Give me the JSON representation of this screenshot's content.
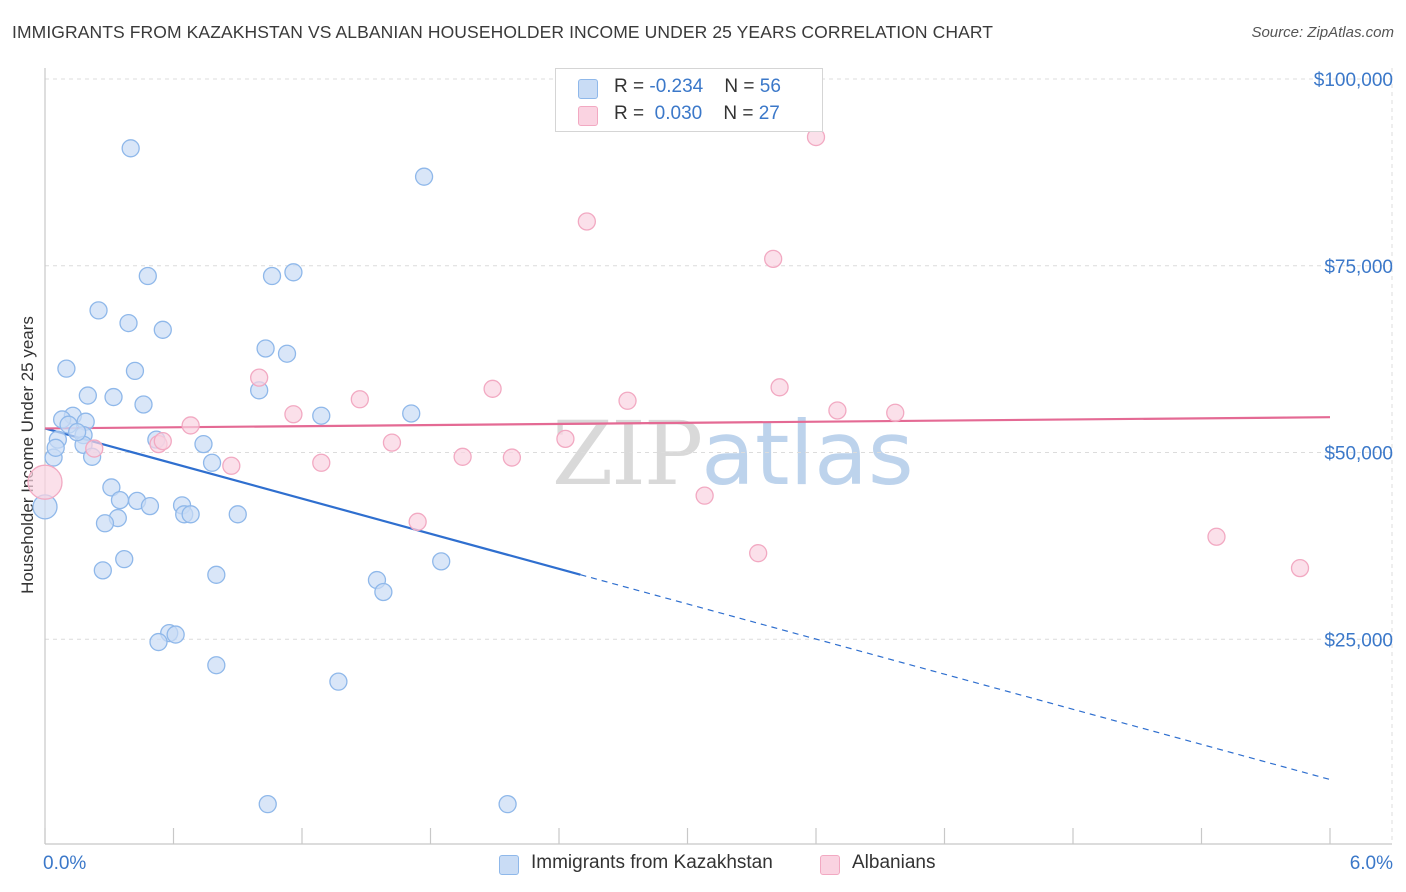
{
  "chart_data": {
    "type": "scatter",
    "title": "IMMIGRANTS FROM KAZAKHSTAN VS ALBANIAN HOUSEHOLDER INCOME UNDER 25 YEARS CORRELATION CHART",
    "source": "Source: ZipAtlas.com",
    "xlabel": "",
    "ylabel": "Householder Income Under 25 years",
    "xlim": [
      0.0,
      6.0
    ],
    "ylim": [
      0,
      105000
    ],
    "x_tick_labels": [
      "0.0%",
      "6.0%"
    ],
    "y_ticks": [
      {
        "value": 25000,
        "label": "$25,000"
      },
      {
        "value": 50000,
        "label": "$50,000"
      },
      {
        "value": 75000,
        "label": "$75,000"
      },
      {
        "value": 100000,
        "label": "$100,000"
      }
    ],
    "grid": true,
    "legend_position": "top-center",
    "series": [
      {
        "name": "Immigrants from Kazakhstan",
        "color": "#8fb8ea",
        "fill": "#c9dcf5",
        "line_color": "#2f6fcf",
        "R": "-0.234",
        "N": "56",
        "trend": {
          "x0": 0.0,
          "y0": 55500,
          "x_solid_end": 2.5,
          "x1": 6.0,
          "y1": 8500
        },
        "points": [
          [
            0.4,
            93000
          ],
          [
            1.77,
            89200
          ],
          [
            0.48,
            75900
          ],
          [
            1.06,
            75900
          ],
          [
            1.16,
            76400
          ],
          [
            0.25,
            71300
          ],
          [
            0.39,
            69600
          ],
          [
            0.55,
            68700
          ],
          [
            1.03,
            66200
          ],
          [
            1.13,
            65500
          ],
          [
            0.1,
            63500
          ],
          [
            0.42,
            63200
          ],
          [
            1.0,
            60600
          ],
          [
            0.2,
            59900
          ],
          [
            0.32,
            59700
          ],
          [
            0.46,
            58700
          ],
          [
            0.13,
            57200
          ],
          [
            0.08,
            56700
          ],
          [
            0.19,
            56400
          ],
          [
            0.11,
            56000
          ],
          [
            1.29,
            57200
          ],
          [
            1.71,
            57500
          ],
          [
            0.06,
            54000
          ],
          [
            0.18,
            54600
          ],
          [
            0.52,
            54000
          ],
          [
            0.74,
            53400
          ],
          [
            0.18,
            53300
          ],
          [
            0.22,
            51700
          ],
          [
            0.04,
            51600
          ],
          [
            0.78,
            50900
          ],
          [
            0.0,
            45000
          ],
          [
            0.31,
            47600
          ],
          [
            0.35,
            45900
          ],
          [
            0.43,
            45800
          ],
          [
            0.49,
            45100
          ],
          [
            0.64,
            45200
          ],
          [
            0.65,
            44000
          ],
          [
            0.68,
            44000
          ],
          [
            0.9,
            44000
          ],
          [
            0.34,
            43500
          ],
          [
            0.28,
            42800
          ],
          [
            0.37,
            38000
          ],
          [
            1.85,
            37700
          ],
          [
            0.27,
            36500
          ],
          [
            0.8,
            35900
          ],
          [
            1.55,
            35200
          ],
          [
            1.58,
            33600
          ],
          [
            0.58,
            28100
          ],
          [
            0.61,
            27900
          ],
          [
            0.53,
            26900
          ],
          [
            0.8,
            23800
          ],
          [
            1.37,
            21600
          ],
          [
            1.04,
            5200
          ],
          [
            2.16,
            5200
          ],
          [
            0.05,
            52900
          ],
          [
            0.15,
            55000
          ]
        ]
      },
      {
        "name": "Albanians",
        "color": "#f2a9c2",
        "fill": "#fad3e1",
        "line_color": "#e46a94",
        "R": "0.030",
        "N": "27",
        "trend": {
          "x0": 0.0,
          "y0": 55500,
          "x1": 6.0,
          "y1": 57000
        },
        "points": [
          [
            3.6,
            94500
          ],
          [
            2.53,
            83200
          ],
          [
            3.4,
            78200
          ],
          [
            1.0,
            62300
          ],
          [
            2.09,
            60800
          ],
          [
            3.43,
            61000
          ],
          [
            1.47,
            59400
          ],
          [
            2.72,
            59200
          ],
          [
            3.7,
            57900
          ],
          [
            3.97,
            57600
          ],
          [
            1.16,
            57400
          ],
          [
            0.68,
            55900
          ],
          [
            2.43,
            54100
          ],
          [
            0.53,
            53400
          ],
          [
            1.62,
            53600
          ],
          [
            0.23,
            52800
          ],
          [
            1.95,
            51700
          ],
          [
            2.18,
            51600
          ],
          [
            1.29,
            50900
          ],
          [
            0.87,
            50500
          ],
          [
            3.08,
            46500
          ],
          [
            0.0,
            48300
          ],
          [
            1.74,
            43000
          ],
          [
            5.47,
            41000
          ],
          [
            3.33,
            38800
          ],
          [
            5.86,
            36800
          ],
          [
            0.55,
            53800
          ]
        ]
      }
    ]
  },
  "legend": {
    "rows": [
      {
        "r_label": "R = ",
        "r_value": "-0.234",
        "n_label": "N = ",
        "n_value": "56"
      },
      {
        "r_label": "R = ",
        "r_value": "0.030",
        "n_label": "N = ",
        "n_value": "27"
      }
    ],
    "bottom": [
      "Immigrants from Kazakhstan",
      "Albanians"
    ]
  },
  "watermark": {
    "part1": "ZIP",
    "part2": "atlas"
  }
}
